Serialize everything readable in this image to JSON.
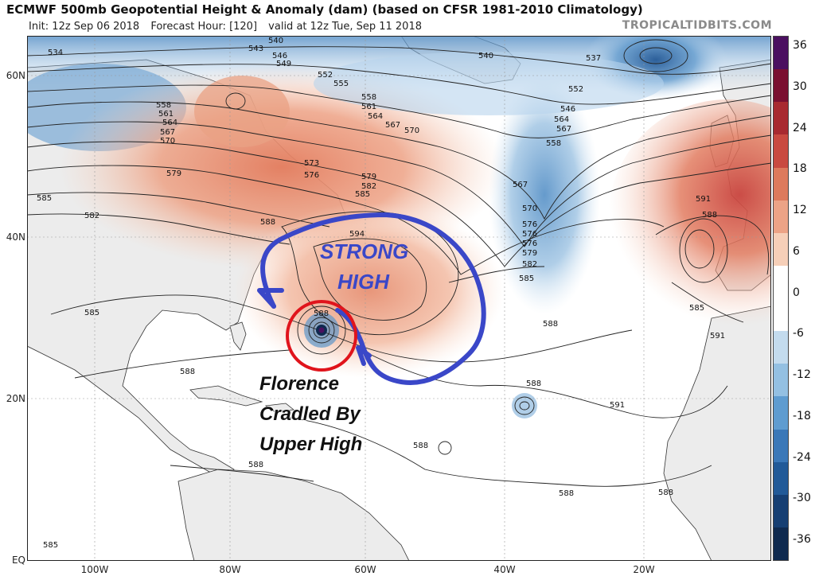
{
  "header": {
    "title": "ECMWF 500mb Geopotential Height & Anomaly (dam) (based on CFSR 1981-2010 Climatology)",
    "init": "Init: 12z Sep 06 2018",
    "forecast_hour": "Forecast Hour: [120]",
    "valid": "valid at 12z Tue, Sep 11 2018",
    "credit": "TROPICALTIDBITS.COM"
  },
  "axes": {
    "lat_labels": [
      "60N",
      "40N",
      "20N",
      "EQ"
    ],
    "lon_labels": [
      "100W",
      "80W",
      "60W",
      "40W",
      "20W"
    ]
  },
  "colorbar": {
    "ticks": [
      "36",
      "30",
      "24",
      "18",
      "12",
      "6",
      "0",
      "-6",
      "-12",
      "-18",
      "-24",
      "-30",
      "-36"
    ],
    "colors": [
      "#4b1060",
      "#7a1030",
      "#a82a30",
      "#c94a40",
      "#dd7a5c",
      "#eca386",
      "#f6cfb8",
      "#ffffff",
      "#ffffff",
      "#c3dbee",
      "#94c0e2",
      "#5f9cd0",
      "#3b78b8",
      "#225a98",
      "#163f73",
      "#0f2a4f"
    ]
  },
  "contour_labels": [
    "534",
    "540",
    "543",
    "546",
    "549",
    "552",
    "555",
    "558",
    "561",
    "564",
    "567",
    "570",
    "573",
    "576",
    "579",
    "582",
    "585",
    "588",
    "591",
    "594",
    "537"
  ],
  "annotations": {
    "strong_high_line1": "STRONG",
    "strong_high_line2": "HIGH",
    "florence_line1": "Florence",
    "florence_line2": "Cradled By",
    "florence_line3": "Upper High"
  },
  "colors": {
    "annotation_blue": "#3a47c8",
    "circle_red": "#e0141c",
    "positive_anomaly": "#e8876a",
    "negative_anomaly": "#5b93c8",
    "land": "#e6e6e6"
  }
}
